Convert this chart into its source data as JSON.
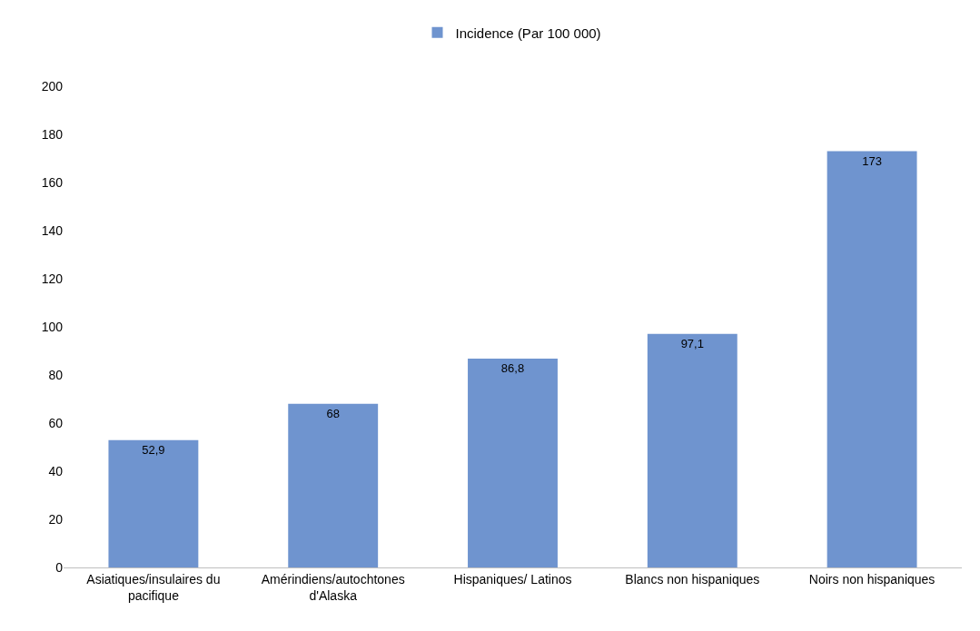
{
  "chart_data": {
    "type": "bar",
    "categories": [
      "Asiatiques/insulaires du pacifique",
      "Amérindiens/autochtones d'Alaska",
      "Hispaniques/ Latinos",
      "Blancs non hispaniques",
      "Noirs non hispaniques"
    ],
    "series": [
      {
        "name": "Incidence (Par 100 000)",
        "color": "#6f94cf",
        "values": [
          52.9,
          68,
          86.8,
          97.1,
          173
        ],
        "value_labels": [
          "52,9",
          "68",
          "86,8",
          "97,1",
          "173"
        ]
      }
    ],
    "ylim": [
      0,
      200
    ],
    "yticks": [
      0,
      20,
      40,
      60,
      80,
      100,
      120,
      140,
      160,
      180,
      200
    ],
    "grid": false,
    "legend": "top"
  }
}
